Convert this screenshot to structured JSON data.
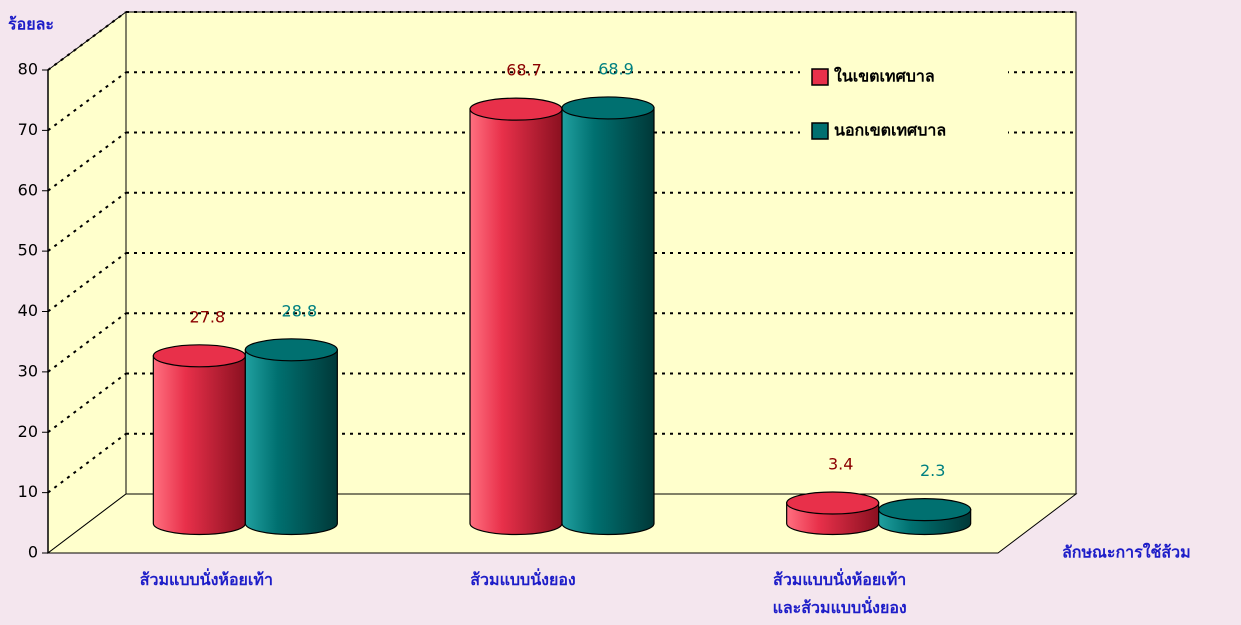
{
  "chart_data": {
    "type": "bar3d",
    "y_label": "ร้อยละ",
    "x_label": "ลักษณะการใช้ส้วม",
    "categories": [
      "ส้วมแบบนั่งห้อยเท้า",
      "ส้วมแบบนั่งยอง",
      "ส้วมแบบนั่งห้อยเท้า\nและส้วมแบบนั่งยอง"
    ],
    "series": [
      {
        "name": "ในเขตเทศบาล",
        "color": "#e8304a",
        "label_color": "#8b0000",
        "values": [
          27.8,
          68.7,
          3.4
        ]
      },
      {
        "name": "นอกเขตเทศบาล",
        "color": "#007070",
        "label_color": "#008080",
        "values": [
          28.8,
          68.9,
          2.3
        ]
      }
    ],
    "ylim": [
      0,
      80
    ],
    "yticks": [
      0,
      10,
      20,
      30,
      40,
      50,
      60,
      70,
      80
    ],
    "grid": true
  }
}
